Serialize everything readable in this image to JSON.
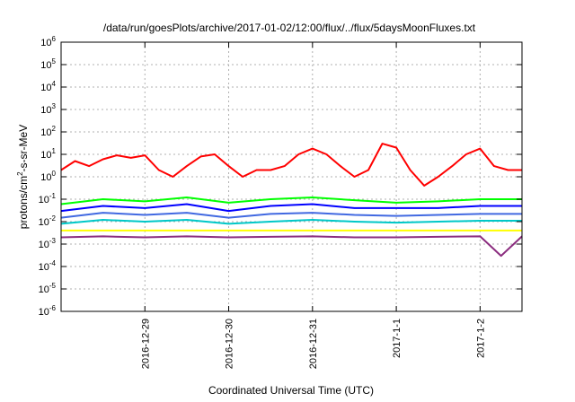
{
  "chart_data": {
    "type": "line",
    "title": "/data/run/goesPlots/archive/2017-01-02/12:00/flux/../flux/5daysMoonFluxes.txt",
    "xlabel": "Coordinated Universal Time (UTC)",
    "ylabel": {
      "prefix": "protons/cm",
      "sup": "2",
      "suffix": "-s-sr-MeV"
    },
    "y_scale": "log",
    "ylim": [
      1e-06,
      1000000.0
    ],
    "y_ticks": [
      {
        "base": "10",
        "exp": "-6",
        "value": 1e-06
      },
      {
        "base": "10",
        "exp": "-5",
        "value": 1e-05
      },
      {
        "base": "10",
        "exp": "-4",
        "value": 0.0001
      },
      {
        "base": "10",
        "exp": "-3",
        "value": 0.001
      },
      {
        "base": "10",
        "exp": "-2",
        "value": 0.01
      },
      {
        "base": "10",
        "exp": "-1",
        "value": 0.1
      },
      {
        "base": "10",
        "exp": "0",
        "value": 1
      },
      {
        "base": "10",
        "exp": "1",
        "value": 10
      },
      {
        "base": "10",
        "exp": "2",
        "value": 100
      },
      {
        "base": "10",
        "exp": "3",
        "value": 1000
      },
      {
        "base": "10",
        "exp": "4",
        "value": 10000
      },
      {
        "base": "10",
        "exp": "5",
        "value": 100000
      },
      {
        "base": "10",
        "exp": "6",
        "value": 1000000
      }
    ],
    "xlim": [
      "2016-12-28 00:00",
      "2017-01-02 12:00"
    ],
    "x_ticks": [
      "2016-12-29",
      "2016-12-30",
      "2016-12-31",
      "2017-1-1",
      "2017-1-2"
    ],
    "x_tick_dates": [
      "2016-12-29 00:00",
      "2016-12-30 00:00",
      "2016-12-31 00:00",
      "2017-01-01 00:00",
      "2017-01-02 00:00"
    ],
    "grid": true,
    "legend": "none",
    "series": [
      {
        "color": "#ff0000",
        "x": [
          "2016-12-28 00:00",
          "2016-12-28 04:00",
          "2016-12-28 08:00",
          "2016-12-28 12:00",
          "2016-12-28 16:00",
          "2016-12-28 20:00",
          "2016-12-29 00:00",
          "2016-12-29 04:00",
          "2016-12-29 08:00",
          "2016-12-29 12:00",
          "2016-12-29 16:00",
          "2016-12-29 20:00",
          "2016-12-30 00:00",
          "2016-12-30 04:00",
          "2016-12-30 08:00",
          "2016-12-30 12:00",
          "2016-12-30 16:00",
          "2016-12-30 20:00",
          "2016-12-31 00:00",
          "2016-12-31 04:00",
          "2016-12-31 08:00",
          "2016-12-31 12:00",
          "2016-12-31 16:00",
          "2016-12-31 20:00",
          "2017-01-01 00:00",
          "2017-01-01 04:00",
          "2017-01-01 08:00",
          "2017-01-01 12:00",
          "2017-01-01 16:00",
          "2017-01-01 20:00",
          "2017-01-02 00:00",
          "2017-01-02 04:00",
          "2017-01-02 08:00",
          "2017-01-02 12:00"
        ],
        "values": [
          2,
          5,
          3,
          6,
          9,
          7,
          9,
          2,
          1,
          3,
          8,
          10,
          3,
          1,
          2,
          2,
          3,
          10,
          18,
          10,
          3,
          1,
          2,
          30,
          20,
          2,
          0.4,
          1,
          3,
          10,
          18,
          3,
          2,
          2
        ]
      },
      {
        "color": "#00ff00",
        "x": [
          "2016-12-28 00:00",
          "2016-12-28 12:00",
          "2016-12-29 00:00",
          "2016-12-29 12:00",
          "2016-12-30 00:00",
          "2016-12-30 12:00",
          "2016-12-31 00:00",
          "2016-12-31 12:00",
          "2017-01-01 00:00",
          "2017-01-01 12:00",
          "2017-01-02 00:00",
          "2017-01-02 12:00"
        ],
        "values": [
          0.06,
          0.1,
          0.08,
          0.12,
          0.07,
          0.1,
          0.12,
          0.09,
          0.07,
          0.08,
          0.1,
          0.1
        ]
      },
      {
        "color": "#0000ff",
        "x": [
          "2016-12-28 00:00",
          "2016-12-28 12:00",
          "2016-12-29 00:00",
          "2016-12-29 12:00",
          "2016-12-30 00:00",
          "2016-12-30 12:00",
          "2016-12-31 00:00",
          "2016-12-31 12:00",
          "2017-01-01 00:00",
          "2017-01-01 12:00",
          "2017-01-02 00:00",
          "2017-01-02 12:00"
        ],
        "values": [
          0.03,
          0.05,
          0.04,
          0.06,
          0.03,
          0.05,
          0.06,
          0.04,
          0.04,
          0.04,
          0.05,
          0.05
        ]
      },
      {
        "color": "#4169e1",
        "x": [
          "2016-12-28 00:00",
          "2016-12-28 12:00",
          "2016-12-29 00:00",
          "2016-12-29 12:00",
          "2016-12-30 00:00",
          "2016-12-30 12:00",
          "2016-12-31 00:00",
          "2016-12-31 12:00",
          "2017-01-01 00:00",
          "2017-01-01 12:00",
          "2017-01-02 00:00",
          "2017-01-02 12:00"
        ],
        "values": [
          0.015,
          0.025,
          0.02,
          0.025,
          0.015,
          0.022,
          0.025,
          0.02,
          0.018,
          0.02,
          0.022,
          0.022
        ]
      },
      {
        "color": "#00c8c8",
        "x": [
          "2016-12-28 00:00",
          "2016-12-28 12:00",
          "2016-12-29 00:00",
          "2016-12-29 12:00",
          "2016-12-30 00:00",
          "2016-12-30 12:00",
          "2016-12-31 00:00",
          "2016-12-31 12:00",
          "2017-01-01 00:00",
          "2017-01-01 12:00",
          "2017-01-02 00:00",
          "2017-01-02 12:00"
        ],
        "values": [
          0.008,
          0.012,
          0.01,
          0.012,
          0.008,
          0.01,
          0.012,
          0.01,
          0.009,
          0.01,
          0.011,
          0.011
        ]
      },
      {
        "color": "#ffff00",
        "x": [
          "2016-12-28 00:00",
          "2016-12-28 12:00",
          "2016-12-29 00:00",
          "2016-12-29 12:00",
          "2016-12-30 00:00",
          "2016-12-30 12:00",
          "2016-12-31 00:00",
          "2016-12-31 12:00",
          "2017-01-01 00:00",
          "2017-01-01 12:00",
          "2017-01-02 00:00",
          "2017-01-02 12:00"
        ],
        "values": [
          0.004,
          0.004,
          0.004,
          0.004,
          0.004,
          0.004,
          0.004,
          0.004,
          0.004,
          0.004,
          0.004,
          0.004
        ]
      },
      {
        "color": "#8b2d7f",
        "x": [
          "2016-12-28 00:00",
          "2016-12-28 12:00",
          "2016-12-29 00:00",
          "2016-12-29 12:00",
          "2016-12-30 00:00",
          "2016-12-30 12:00",
          "2016-12-31 00:00",
          "2016-12-31 12:00",
          "2017-01-01 00:00",
          "2017-01-01 12:00",
          "2017-01-02 00:00",
          "2017-01-02 06:00",
          "2017-01-02 12:00"
        ],
        "values": [
          0.002,
          0.0022,
          0.002,
          0.0022,
          0.002,
          0.0021,
          0.0022,
          0.002,
          0.002,
          0.0021,
          0.0022,
          0.0003,
          0.0022
        ]
      }
    ]
  }
}
